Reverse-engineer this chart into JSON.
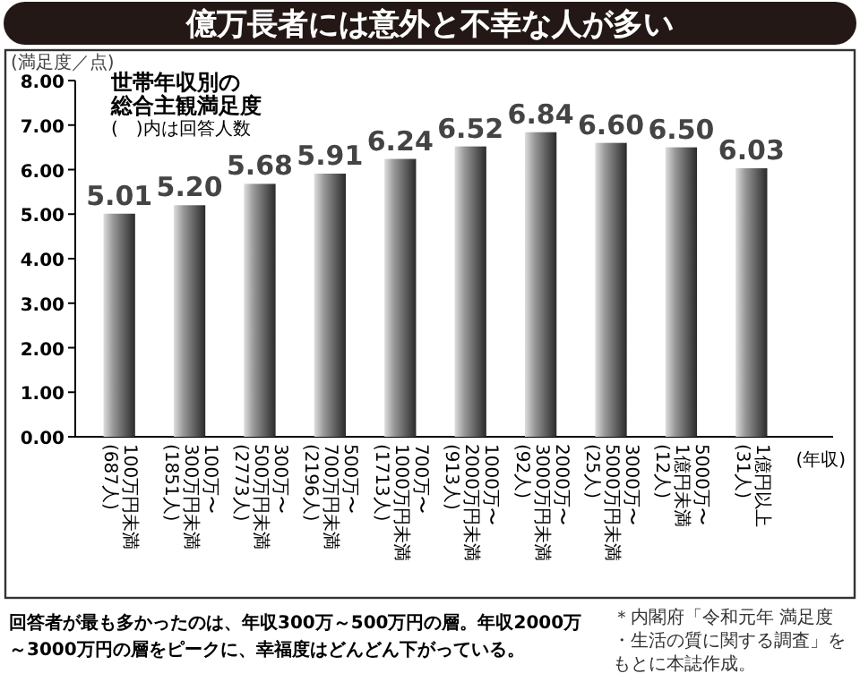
{
  "chart_data": {
    "type": "bar",
    "title": "億万長者には意外と不幸な人が多い",
    "subtitle": "世帯年収別の総合主観満足度",
    "ylabel": "(満足度／点)",
    "xlabel": "(年収)",
    "annotations": [
      "(　)内は回答人数",
      "回答者が最も多かったのは、年収300万～500万円の層。年収2000万～3000万円の層をピークに、幸福度はどんどん下がっている。",
      "＊内閣府「令和元年 満足度・生活の質に関する調査」をもとに本誌作成。"
    ],
    "categories": [
      "100万円未満(687人)",
      "100万〜300万円未満(1851人)",
      "300万〜500万円未満(2773人)",
      "500万〜700万円未満(2196人)",
      "700万〜1000万円未満(1713人)",
      "1000万〜2000万円未満(913人)",
      "2000万〜3000万円未満(92人)",
      "3000万〜5000万円未満(25人)",
      "5000万〜1億円未満(12人)",
      "1億円以上(31人)"
    ],
    "values": [
      5.01,
      5.2,
      5.68,
      5.91,
      6.24,
      6.52,
      6.84,
      6.6,
      6.5,
      6.03
    ],
    "color": "#2a2a2a",
    "value_labels": [
      "5.01",
      "5.20",
      "5.68",
      "5.91",
      "6.24",
      "6.52",
      "6.84",
      "6.60",
      "6.50",
      "6.03"
    ],
    "ylim": [
      0,
      8
    ],
    "yticks": [
      {
        "value": 0,
        "label": "0.00"
      },
      {
        "value": 1,
        "label": "1.00"
      },
      {
        "value": 2,
        "label": "2.00"
      },
      {
        "value": 3,
        "label": "3.00"
      },
      {
        "value": 4,
        "label": "4.00"
      },
      {
        "value": 5,
        "label": "5.00"
      },
      {
        "value": 6,
        "label": "6.00"
      },
      {
        "value": 7,
        "label": "7.00"
      },
      {
        "value": 8,
        "label": "8.00"
      }
    ]
  }
}
